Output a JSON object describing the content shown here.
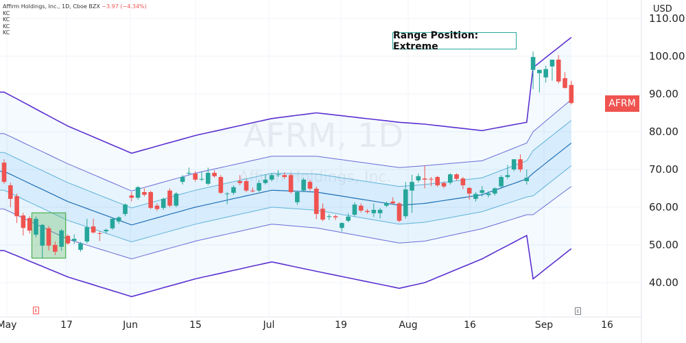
{
  "header": {
    "symbol_line": "Affirm Holdings, Inc., 1D, Cboe BZX",
    "change": "−3.97 (−4.34%)",
    "indicators": [
      "KC",
      "KC",
      "KC",
      "KC"
    ]
  },
  "watermark": {
    "ticker": "AFRM, 1D",
    "name": "Affirm Holdings, Inc."
  },
  "annotation": "Range Position: Extreme",
  "price_tag": "AFRM",
  "currency": "USD",
  "earnings_markers": [
    {
      "label": "E",
      "color": "#ef5350"
    },
    {
      "label": "E",
      "color": "#787b86"
    }
  ],
  "colors": {
    "up": "#26a69a",
    "down": "#ef5350",
    "mid": "#1e6fb5",
    "band1": "#5fb3d9",
    "band2": "#6a6ad6",
    "band3": "#5b2fd0",
    "highlight": "#4caf50"
  },
  "chart_data": {
    "type": "candlestick",
    "title": "",
    "y_ticks": [
      110,
      100,
      90,
      80,
      70,
      60,
      50,
      40
    ],
    "ylim": [
      35,
      113
    ],
    "x_tick_labels": [
      "May",
      "17",
      "Jun",
      "15",
      "Jul",
      "19",
      "Aug",
      "16",
      "Sep",
      "16"
    ],
    "grid": true,
    "ohlc": [
      [
        71.8,
        72.7,
        66.2,
        66.7
      ],
      [
        65.8,
        66.5,
        60.0,
        62.2
      ],
      [
        62.9,
        63.6,
        55.8,
        57.6
      ],
      [
        57.8,
        58.5,
        52.5,
        54.5
      ],
      [
        57.1,
        57.6,
        53.0,
        53.8
      ],
      [
        52.7,
        57.5,
        52.0,
        56.9
      ],
      [
        49.8,
        55.6,
        46.4,
        55.3
      ],
      [
        54.4,
        55.0,
        48.5,
        49.8
      ],
      [
        50.0,
        50.9,
        47.3,
        48.2
      ],
      [
        49.5,
        54.2,
        48.5,
        53.8
      ],
      [
        52.4,
        52.8,
        50.0,
        50.4
      ],
      [
        51.1,
        52.8,
        50.2,
        51.6
      ],
      [
        48.7,
        50.8,
        48.2,
        50.4
      ],
      [
        50.9,
        56.9,
        50.4,
        54.7
      ],
      [
        54.9,
        56.9,
        53.0,
        53.3
      ],
      [
        53.1,
        53.6,
        51.0,
        53.0
      ],
      [
        53.6,
        54.3,
        53.0,
        54.0
      ],
      [
        54.4,
        57.2,
        54.0,
        56.9
      ],
      [
        56.2,
        57.6,
        55.6,
        57.3
      ],
      [
        58.2,
        61.0,
        57.6,
        60.7
      ],
      [
        63.1,
        64.0,
        61.5,
        62.5
      ],
      [
        62.5,
        65.6,
        62.0,
        65.3
      ],
      [
        64.0,
        65.0,
        62.8,
        63.3
      ],
      [
        64.0,
        64.4,
        59.5,
        59.8
      ],
      [
        60.4,
        61.0,
        59.0,
        59.5
      ],
      [
        59.8,
        62.5,
        59.3,
        62.2
      ],
      [
        64.4,
        65.0,
        60.0,
        60.4
      ],
      [
        60.4,
        64.0,
        60.0,
        63.6
      ],
      [
        66.7,
        68.5,
        66.0,
        68.0
      ],
      [
        68.9,
        70.5,
        68.5,
        69.1
      ],
      [
        68.9,
        69.5,
        66.8,
        67.3
      ],
      [
        67.3,
        69.5,
        66.9,
        67.5
      ],
      [
        66.2,
        70.5,
        65.8,
        69.1
      ],
      [
        69.1,
        69.8,
        67.8,
        68.2
      ],
      [
        68.0,
        68.5,
        63.5,
        63.8
      ],
      [
        63.5,
        64.0,
        60.8,
        63.6
      ],
      [
        63.8,
        65.8,
        63.3,
        65.3
      ],
      [
        66.9,
        68.5,
        65.8,
        66.4
      ],
      [
        66.9,
        67.5,
        64.0,
        64.4
      ],
      [
        64.4,
        65.2,
        63.9,
        64.2
      ],
      [
        64.4,
        67.2,
        64.0,
        66.4
      ],
      [
        66.4,
        68.6,
        66.0,
        67.3
      ],
      [
        67.3,
        69.0,
        66.9,
        68.5
      ],
      [
        68.6,
        69.8,
        68.0,
        68.7
      ],
      [
        68.5,
        69.2,
        67.5,
        68.0
      ],
      [
        68.5,
        68.9,
        63.6,
        64.0
      ],
      [
        61.3,
        64.4,
        60.6,
        64.0
      ],
      [
        64.4,
        67.8,
        64.0,
        67.3
      ],
      [
        66.7,
        67.3,
        64.3,
        64.9
      ],
      [
        64.9,
        65.5,
        56.8,
        58.2
      ],
      [
        59.6,
        61.0,
        56.3,
        56.7
      ],
      [
        57.4,
        58.2,
        56.6,
        57.6
      ],
      [
        57.6,
        58.0,
        56.6,
        57.3
      ],
      [
        54.5,
        56.0,
        53.6,
        55.8
      ],
      [
        56.4,
        58.4,
        56.0,
        57.5
      ],
      [
        58.0,
        61.3,
        57.5,
        60.7
      ],
      [
        60.4,
        61.0,
        58.6,
        59.1
      ],
      [
        59.0,
        59.5,
        58.3,
        58.7
      ],
      [
        58.4,
        61.0,
        57.4,
        59.3
      ],
      [
        58.4,
        59.8,
        57.0,
        59.3
      ],
      [
        60.4,
        61.5,
        60.0,
        61.1
      ],
      [
        61.5,
        62.6,
        60.8,
        61.0
      ],
      [
        61.0,
        61.3,
        56.0,
        56.4
      ],
      [
        57.6,
        66.7,
        57.0,
        64.7
      ],
      [
        64.4,
        68.6,
        58.5,
        66.7
      ],
      [
        67.1,
        68.9,
        66.5,
        68.2
      ],
      [
        67.6,
        71.0,
        65.0,
        67.3
      ],
      [
        67.5,
        68.0,
        65.6,
        67.4
      ],
      [
        68.0,
        68.3,
        65.4,
        65.8
      ],
      [
        66.4,
        66.8,
        65.0,
        65.5
      ],
      [
        66.5,
        69.0,
        66.0,
        68.7
      ],
      [
        68.7,
        69.0,
        67.0,
        67.5
      ],
      [
        67.6,
        68.0,
        64.8,
        65.8
      ],
      [
        65.1,
        65.3,
        62.0,
        63.6
      ],
      [
        62.2,
        64.0,
        61.5,
        63.5
      ],
      [
        63.8,
        65.6,
        62.8,
        64.5
      ],
      [
        63.2,
        64.2,
        62.6,
        63.6
      ],
      [
        63.6,
        65.2,
        63.1,
        65.0
      ],
      [
        65.5,
        68.5,
        65.2,
        68.0
      ],
      [
        68.0,
        71.2,
        67.5,
        68.5
      ],
      [
        70.0,
        72.7,
        69.5,
        72.7
      ],
      [
        72.7,
        74.0,
        69.3,
        70.0
      ],
      [
        66.9,
        70.0,
        66.0,
        67.8
      ],
      [
        96.4,
        101.3,
        91.3,
        99.8
      ],
      [
        95.5,
        96.4,
        90.4,
        96.4
      ],
      [
        94.4,
        97.5,
        93.0,
        96.6
      ],
      [
        97.3,
        99.1,
        93.5,
        99.1
      ],
      [
        99.1,
        100.3,
        92.8,
        93.3
      ],
      [
        94.2,
        95.8,
        91.5,
        91.6
      ],
      [
        92.4,
        93.5,
        87.2,
        87.6
      ]
    ],
    "keltner": {
      "candle_index": [
        0,
        10,
        20,
        30,
        42,
        49,
        62,
        66,
        75,
        82,
        83,
        89
      ],
      "middle": [
        69.5,
        61.5,
        55.3,
        60,
        64.5,
        64,
        60.5,
        61,
        63.3,
        67.5,
        69,
        77
      ],
      "band1_width": [
        5,
        5,
        4.5,
        4.5,
        4.5,
        4.8,
        5,
        5,
        4.5,
        4.8,
        6,
        6
      ],
      "band2_width": [
        10,
        10,
        9,
        9,
        9,
        9.5,
        10,
        10,
        9,
        9.5,
        11,
        11.5
      ],
      "band3_width": [
        21,
        20,
        19,
        19,
        19,
        21,
        22,
        21,
        17,
        15,
        28,
        28
      ]
    },
    "highlight_range": {
      "from_index": 5,
      "to_index": 9,
      "low": 46.5,
      "high": 58.5
    }
  }
}
